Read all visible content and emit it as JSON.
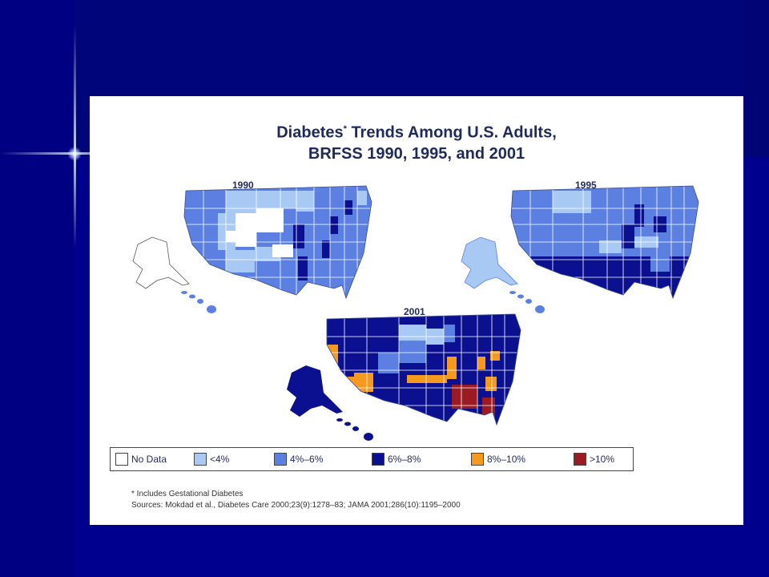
{
  "title_line1": "Diabetes",
  "title_sup": "*",
  "title_line1_rest": " Trends Among U.S. Adults,",
  "title_line2": "BRFSS 1990, 1995, and 2001",
  "maps": [
    {
      "year_label": "1990"
    },
    {
      "year_label": "1995"
    },
    {
      "year_label": "2001"
    }
  ],
  "legend": [
    {
      "label": "No Data",
      "color": "#ffffff"
    },
    {
      "label": "<4%",
      "color": "#a9c9f5"
    },
    {
      "label": "4%–6%",
      "color": "#5b80e2"
    },
    {
      "label": "6%–8%",
      "color": "#0a1090"
    },
    {
      "label": "8%–10%",
      "color": "#f59a1f"
    },
    {
      "label": ">10%",
      "color": "#9a1b22"
    }
  ],
  "footnote_line1": "* Includes Gestational Diabetes",
  "footnote_line2": "Sources: Mokdad et al., Diabetes Care 2000;23(9):1278–83; JAMA 2001;286(10):1195–2000"
}
